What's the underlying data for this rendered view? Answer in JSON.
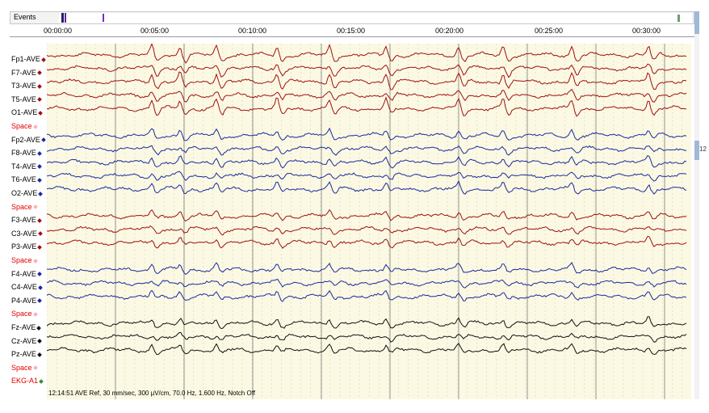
{
  "events": {
    "label": "Events"
  },
  "timeline": {
    "ticks": [
      "00:00:00",
      "00:05:00",
      "00:10:00",
      "00:15:00",
      "00:20:00",
      "00:25:00",
      "00:30:00"
    ]
  },
  "channels": [
    {
      "label": "Fp1-AVE",
      "color": "#a01010",
      "group": "left-temporal"
    },
    {
      "label": "F7-AVE",
      "color": "#a01010",
      "group": "left-temporal"
    },
    {
      "label": "T3-AVE",
      "color": "#a01010",
      "group": "left-temporal"
    },
    {
      "label": "T5-AVE",
      "color": "#a01010",
      "group": "left-temporal"
    },
    {
      "label": "O1-AVE",
      "color": "#a01010",
      "group": "left-temporal"
    },
    {
      "label": "Space",
      "color": "#e00000",
      "group": "space"
    },
    {
      "label": "Fp2-AVE",
      "color": "#1a2a9e",
      "group": "right-temporal"
    },
    {
      "label": "F8-AVE",
      "color": "#1a2a9e",
      "group": "right-temporal"
    },
    {
      "label": "T4-AVE",
      "color": "#1a2a9e",
      "group": "right-temporal"
    },
    {
      "label": "T6-AVE",
      "color": "#1a2a9e",
      "group": "right-temporal"
    },
    {
      "label": "O2-AVE",
      "color": "#1a2a9e",
      "group": "right-temporal"
    },
    {
      "label": "Space",
      "color": "#e00000",
      "group": "space"
    },
    {
      "label": "F3-AVE",
      "color": "#a01010",
      "group": "left-parasagittal"
    },
    {
      "label": "C3-AVE",
      "color": "#a01010",
      "group": "left-parasagittal"
    },
    {
      "label": "P3-AVE",
      "color": "#a01010",
      "group": "left-parasagittal"
    },
    {
      "label": "Space",
      "color": "#e00000",
      "group": "space"
    },
    {
      "label": "F4-AVE",
      "color": "#1a2a9e",
      "group": "right-parasagittal"
    },
    {
      "label": "C4-AVE",
      "color": "#1a2a9e",
      "group": "right-parasagittal"
    },
    {
      "label": "P4-AVE",
      "color": "#1a2a9e",
      "group": "right-parasagittal"
    },
    {
      "label": "Space",
      "color": "#e00000",
      "group": "space"
    },
    {
      "label": "Fz-AVE",
      "color": "#111111",
      "group": "midline"
    },
    {
      "label": "Cz-AVE",
      "color": "#111111",
      "group": "midline"
    },
    {
      "label": "Pz-AVE",
      "color": "#111111",
      "group": "midline"
    },
    {
      "label": "Space",
      "color": "#e00000",
      "group": "space"
    },
    {
      "label": "EKG-A1",
      "color": "#e00000",
      "group": "ekg"
    }
  ],
  "status": {
    "text": "12:14:51 AVE Ref, 30 mm/sec, 300 µV/cm, 70.0 Hz, 1.600 Hz, Notch Off"
  },
  "icons": [
    "event-marker-icon",
    "scroll-up-icon",
    "scroll-down-icon"
  ]
}
